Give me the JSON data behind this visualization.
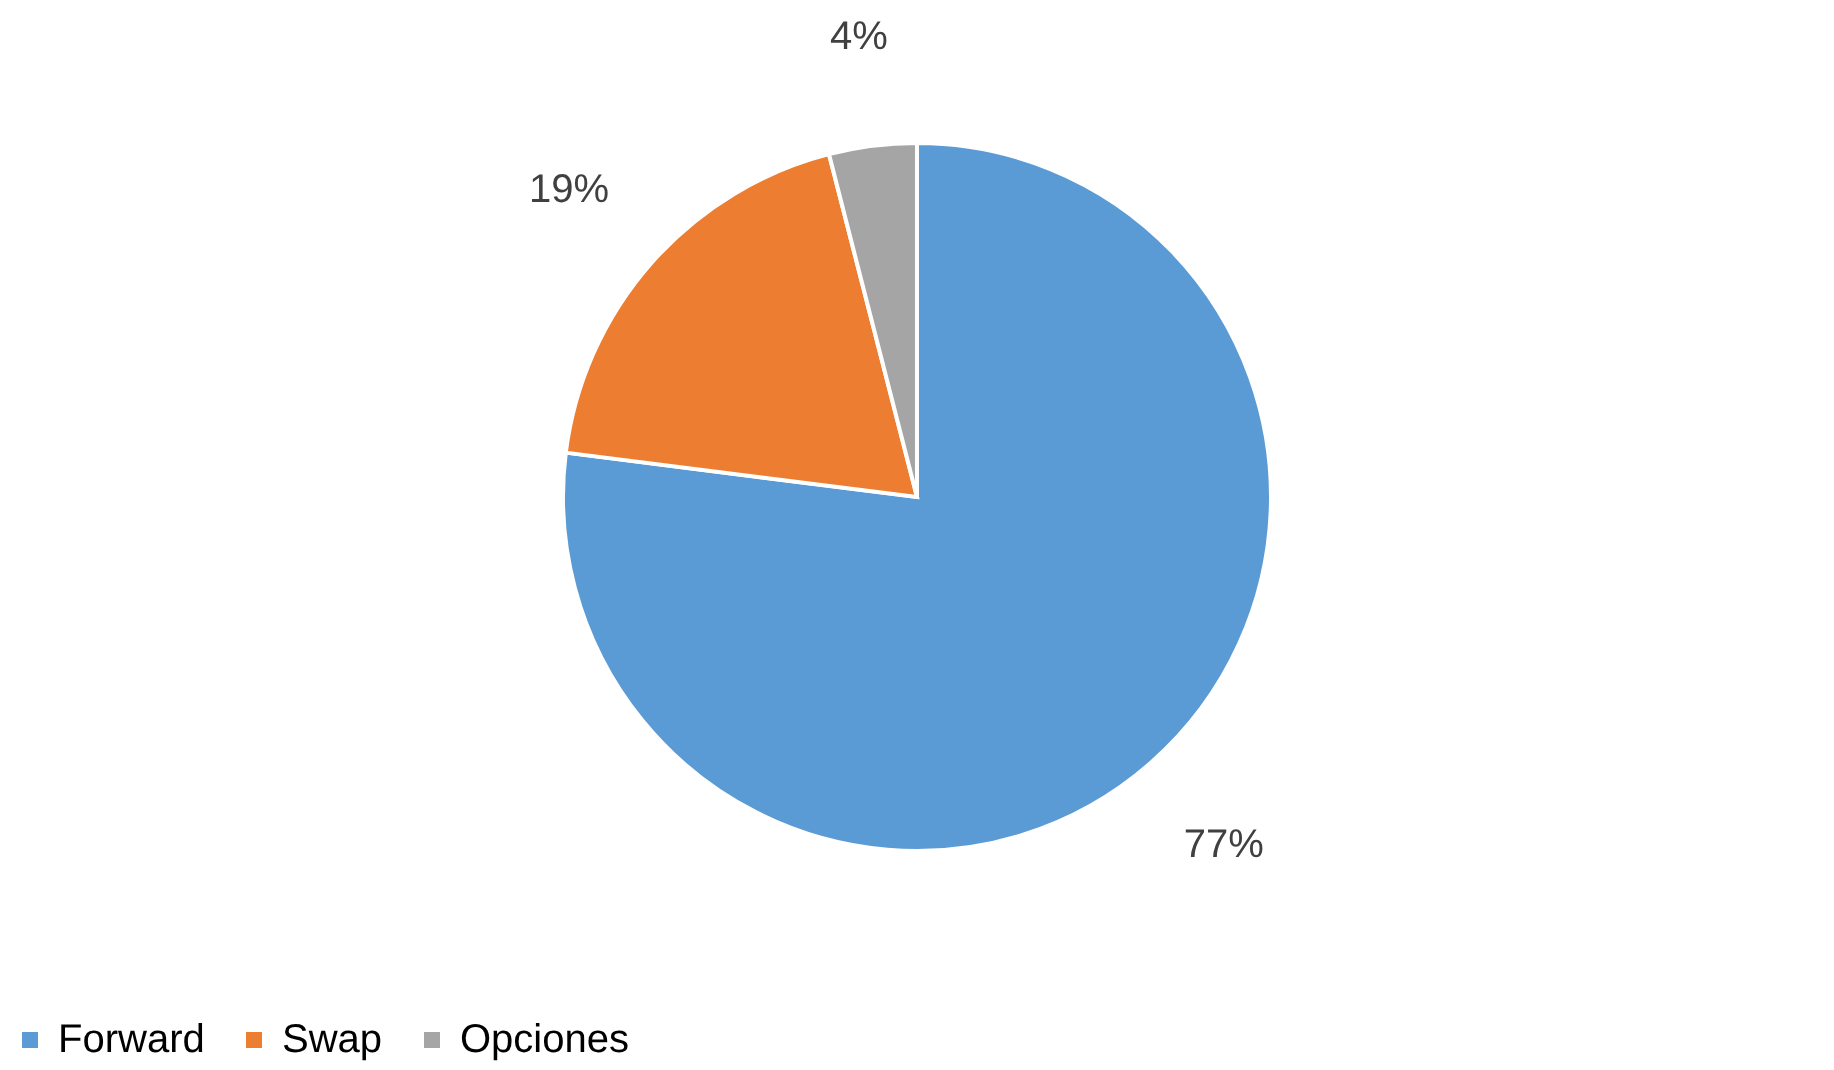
{
  "chart_data": {
    "type": "pie",
    "categories": [
      "Forward",
      "Swap",
      "Opciones"
    ],
    "values": [
      77,
      19,
      4
    ],
    "colors": [
      "#5b9bd5",
      "#ed7d31",
      "#a5a5a5"
    ],
    "value_labels": [
      "77%",
      "19%",
      "4%"
    ],
    "legend": "bottom"
  }
}
